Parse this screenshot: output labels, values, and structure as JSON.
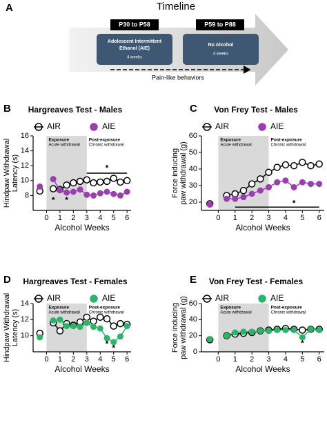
{
  "panel_labels": [
    "A",
    "B",
    "C",
    "D",
    "E"
  ],
  "timeline": {
    "title": "Timeline",
    "periods": [
      {
        "label": "P30 to P58",
        "name": [
          "Adolescent Intermittent",
          "Ethanol (AIE)"
        ],
        "duration": "4 weeks"
      },
      {
        "label": "P59 to P88",
        "name": [
          "No Alcohol"
        ],
        "duration": "4 weeks"
      }
    ],
    "footer": "Pain-like behaviors"
  },
  "chart_data": [
    {
      "type": "line",
      "title": "Hargreaves Test - Males",
      "xlabel": "Alcohol Weeks",
      "ylabel": [
        "Hindpaw Withdrawal",
        "Latency (s)"
      ],
      "x": [
        -0.5,
        0,
        0.5,
        1,
        1.5,
        2,
        2.5,
        3,
        3.5,
        4,
        4.5,
        5,
        5.5,
        6
      ],
      "xlim": [
        -1,
        6.3
      ],
      "xticks": [
        0,
        1,
        2,
        3,
        4,
        5,
        6
      ],
      "ylim": [
        6,
        16
      ],
      "yticks": [
        8,
        10,
        12,
        14,
        16
      ],
      "shade": [
        0,
        3
      ],
      "phases": [
        {
          "label": "Exposure",
          "sublabel": "Acute withdrawal"
        },
        {
          "label": "Post-exposure",
          "sublabel": "Chronic withdrawal"
        }
      ],
      "series": [
        {
          "name": "AIR",
          "color": "#000000",
          "filled": false,
          "values": [
            8.6,
            null,
            8.9,
            8.8,
            9.4,
            9.7,
            9.9,
            10.1,
            9.7,
            9.8,
            9.9,
            10.3,
            9.8,
            10.0
          ]
        },
        {
          "name": "AIE",
          "color": "#9b3fb0",
          "filled": true,
          "values": [
            9.2,
            null,
            10.2,
            8.7,
            8.4,
            8.5,
            8.8,
            8.1,
            8.0,
            8.3,
            8.5,
            8.2,
            8.0,
            8.5
          ]
        }
      ],
      "sig_lines": [
        {
          "x": [
            3,
            6
          ],
          "y": 11
        }
      ],
      "annotations": [
        {
          "text": "*",
          "x": 0.5,
          "y": 7.3
        },
        {
          "text": "*",
          "x": 1.5,
          "y": 7.3
        },
        {
          "text": "*",
          "x": 4.5,
          "y": 11.6
        }
      ]
    },
    {
      "type": "line",
      "title": "Von Frey Test - Males",
      "xlabel": "Alcohol Weeks",
      "ylabel": [
        "Force inducing",
        "paw withdrawal (g)"
      ],
      "x": [
        -0.5,
        0,
        0.5,
        1,
        1.5,
        2,
        2.5,
        3,
        3.5,
        4,
        4.5,
        5,
        5.5,
        6
      ],
      "xlim": [
        -1,
        6.3
      ],
      "xticks": [
        0,
        1,
        2,
        3,
        4,
        5,
        6
      ],
      "ylim": [
        15,
        60
      ],
      "yticks": [
        20,
        30,
        40,
        50,
        60
      ],
      "shade": [
        0,
        3
      ],
      "phases": [
        {
          "label": "Exposure",
          "sublabel": "Acute withdrawal"
        },
        {
          "label": "Post-exposure",
          "sublabel": "Chronic withdrawal"
        }
      ],
      "series": [
        {
          "name": "AIR",
          "color": "#000000",
          "filled": false,
          "values": [
            19,
            null,
            24,
            25,
            27,
            31,
            34,
            38,
            41,
            42.5,
            42,
            44,
            42,
            43
          ]
        },
        {
          "name": "AIE",
          "color": "#9b3fb0",
          "filled": true,
          "values": [
            18.5,
            null,
            22,
            22,
            23,
            25,
            27,
            29,
            32,
            33,
            29,
            32,
            31,
            31
          ]
        }
      ],
      "sig_lines": [
        {
          "x": [
            1,
            6
          ],
          "y": 17
        }
      ],
      "annotations": [
        {
          "text": "*",
          "x": 4.5,
          "y": 19
        }
      ]
    },
    {
      "type": "line",
      "title": "Hargreaves Test - Females",
      "xlabel": "Alcohol Weeks",
      "ylabel": [
        "Hindpaw Withdrawal",
        "Latency (s)"
      ],
      "x": [
        -0.5,
        0,
        0.5,
        1,
        1.5,
        2,
        2.5,
        3,
        3.5,
        4,
        4.5,
        5,
        5.5,
        6
      ],
      "xlim": [
        -1,
        6.3
      ],
      "xticks": [
        0,
        1,
        2,
        3,
        4,
        5,
        6
      ],
      "ylim": [
        8,
        14
      ],
      "yticks": [
        10,
        12,
        14
      ],
      "shade": [
        0,
        3
      ],
      "phases": [
        {
          "label": "Exposure",
          "sublabel": "Acute withdrawal"
        },
        {
          "label": "Post-exposure",
          "sublabel": "Chronic withdrawal"
        }
      ],
      "series": [
        {
          "name": "AIR",
          "color": "#000000",
          "filled": false,
          "values": [
            10.3,
            null,
            11.6,
            10.6,
            11.5,
            11.3,
            11.7,
            12.3,
            11.8,
            12.3,
            12.1,
            11.2,
            11.5,
            11.4
          ]
        },
        {
          "name": "AIE",
          "color": "#2db36b",
          "filled": true,
          "values": [
            9.8,
            null,
            11.9,
            12.0,
            11.2,
            11.2,
            11.1,
            11.6,
            11.1,
            10.9,
            9.7,
            9.2,
            9.9,
            11.2
          ]
        }
      ],
      "sig_lines": [],
      "annotations": [
        {
          "text": "*",
          "x": 4.5,
          "y": 8.9
        },
        {
          "text": "*",
          "x": 5,
          "y": 8.4
        }
      ]
    },
    {
      "type": "line",
      "title": "Von Frey Test - Females",
      "xlabel": "Alcohol Weeks",
      "ylabel": [
        "Force inducing",
        "paw withdrawal (g)"
      ],
      "x": [
        -0.5,
        0,
        0.5,
        1,
        1.5,
        2,
        2.5,
        3,
        3.5,
        4,
        4.5,
        5,
        5.5,
        6
      ],
      "xlim": [
        -1,
        6.3
      ],
      "xticks": [
        0,
        1,
        2,
        3,
        4,
        5,
        6
      ],
      "ylim": [
        0,
        60
      ],
      "yticks": [
        0,
        20,
        40,
        60
      ],
      "shade": [
        0,
        3
      ],
      "phases": [
        {
          "label": "Exposure",
          "sublabel": "Acute withdrawal"
        },
        {
          "label": "Post-exposure",
          "sublabel": "Chronic withdrawal"
        }
      ],
      "series": [
        {
          "name": "AIR",
          "color": "#000000",
          "filled": false,
          "values": [
            15,
            null,
            20,
            22,
            23,
            24,
            26,
            27,
            28,
            29,
            28,
            27,
            28,
            28
          ]
        },
        {
          "name": "AIE",
          "color": "#2db36b",
          "filled": true,
          "values": [
            15.5,
            null,
            20,
            24,
            25,
            25,
            26,
            26,
            27,
            27,
            27,
            18,
            28,
            27
          ]
        }
      ],
      "sig_lines": [],
      "annotations": [
        {
          "text": "*",
          "x": 5,
          "y": 10
        }
      ]
    }
  ]
}
